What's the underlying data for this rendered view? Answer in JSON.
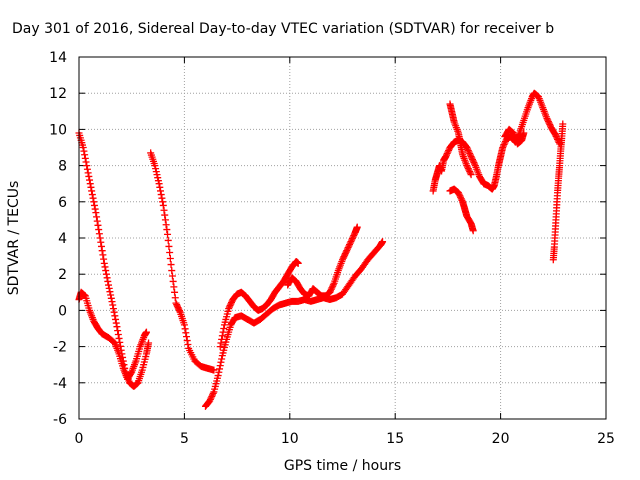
{
  "chart_data": {
    "type": "scatter",
    "title": "Day 301 of 2016, Sidereal Day-to-day VTEC variation (SDTVAR) for receiver b",
    "xlabel": "GPS time / hours",
    "ylabel": "SDTVAR / TECUs",
    "xlim": [
      0,
      25
    ],
    "ylim": [
      -6,
      14
    ],
    "xticks": [
      0,
      5,
      10,
      15,
      20,
      25
    ],
    "yticks": [
      -6,
      -4,
      -2,
      0,
      2,
      4,
      6,
      8,
      10,
      12,
      14
    ],
    "grid": true,
    "marker": "plus",
    "color": "#ff0000",
    "series": [
      {
        "points": [
          [
            0.0,
            9.8
          ],
          [
            0.2,
            9.0
          ],
          [
            0.4,
            7.8
          ],
          [
            0.6,
            6.6
          ],
          [
            0.8,
            5.4
          ],
          [
            1.0,
            4.0
          ],
          [
            1.2,
            2.6
          ],
          [
            1.4,
            1.4
          ],
          [
            1.6,
            0.3
          ],
          [
            1.8,
            -0.9
          ],
          [
            2.0,
            -2.2
          ],
          [
            2.2,
            -3.4
          ],
          [
            2.4,
            -4.0
          ],
          [
            2.6,
            -4.2
          ],
          [
            2.8,
            -4.0
          ],
          [
            3.0,
            -3.3
          ],
          [
            3.2,
            -2.4
          ],
          [
            3.3,
            -1.8
          ]
        ]
      },
      {
        "points": [
          [
            0.0,
            0.6
          ],
          [
            0.1,
            1.0
          ],
          [
            0.3,
            0.8
          ],
          [
            0.5,
            0.0
          ],
          [
            0.7,
            -0.6
          ],
          [
            0.9,
            -1.0
          ],
          [
            1.1,
            -1.3
          ],
          [
            1.4,
            -1.5
          ],
          [
            1.7,
            -1.8
          ],
          [
            1.9,
            -2.4
          ],
          [
            2.1,
            -3.2
          ],
          [
            2.3,
            -3.8
          ],
          [
            2.5,
            -3.4
          ],
          [
            2.7,
            -2.8
          ],
          [
            2.9,
            -2.0
          ],
          [
            3.1,
            -1.4
          ],
          [
            3.2,
            -1.2
          ]
        ]
      },
      {
        "points": [
          [
            3.4,
            8.7
          ],
          [
            3.6,
            8.0
          ],
          [
            3.8,
            7.0
          ],
          [
            4.0,
            5.8
          ],
          [
            4.2,
            4.2
          ],
          [
            4.4,
            2.2
          ],
          [
            4.6,
            0.4
          ],
          [
            4.8,
            -0.1
          ],
          [
            5.0,
            -0.8
          ],
          [
            5.2,
            -2.1
          ],
          [
            5.5,
            -2.8
          ],
          [
            5.8,
            -3.1
          ],
          [
            6.1,
            -3.2
          ],
          [
            6.4,
            -3.3
          ]
        ]
      },
      {
        "points": [
          [
            6.0,
            -5.3
          ],
          [
            6.2,
            -5.0
          ],
          [
            6.4,
            -4.5
          ],
          [
            6.6,
            -3.6
          ],
          [
            6.8,
            -2.5
          ],
          [
            7.0,
            -1.6
          ],
          [
            7.2,
            -0.8
          ],
          [
            7.4,
            -0.4
          ],
          [
            7.7,
            -0.3
          ],
          [
            8.0,
            -0.5
          ],
          [
            8.3,
            -0.7
          ],
          [
            8.6,
            -0.5
          ],
          [
            8.9,
            -0.2
          ],
          [
            9.2,
            0.1
          ],
          [
            9.5,
            0.3
          ],
          [
            9.8,
            0.4
          ],
          [
            10.1,
            0.5
          ],
          [
            10.4,
            0.5
          ],
          [
            10.7,
            0.6
          ],
          [
            11.0,
            0.5
          ],
          [
            11.3,
            0.6
          ],
          [
            11.6,
            0.7
          ],
          [
            11.9,
            0.6
          ],
          [
            12.2,
            0.7
          ],
          [
            12.5,
            0.9
          ],
          [
            12.8,
            1.4
          ],
          [
            13.1,
            1.9
          ],
          [
            13.4,
            2.3
          ],
          [
            13.7,
            2.8
          ],
          [
            14.0,
            3.2
          ],
          [
            14.3,
            3.6
          ],
          [
            14.4,
            3.8
          ]
        ]
      },
      {
        "points": [
          [
            6.7,
            -2.0
          ],
          [
            6.9,
            -0.8
          ],
          [
            7.1,
            0.1
          ],
          [
            7.3,
            0.6
          ],
          [
            7.5,
            0.9
          ],
          [
            7.7,
            1.0
          ],
          [
            7.9,
            0.8
          ],
          [
            8.1,
            0.5
          ],
          [
            8.3,
            0.2
          ],
          [
            8.5,
            0.0
          ],
          [
            8.7,
            0.1
          ],
          [
            8.9,
            0.3
          ],
          [
            9.1,
            0.6
          ],
          [
            9.3,
            1.0
          ],
          [
            9.5,
            1.3
          ],
          [
            9.7,
            1.6
          ],
          [
            9.9,
            2.0
          ],
          [
            10.1,
            2.4
          ],
          [
            10.3,
            2.7
          ],
          [
            10.4,
            2.6
          ]
        ]
      },
      {
        "points": [
          [
            9.9,
            1.4
          ],
          [
            10.1,
            1.8
          ],
          [
            10.3,
            1.6
          ],
          [
            10.5,
            1.2
          ],
          [
            10.7,
            0.9
          ],
          [
            10.9,
            0.8
          ],
          [
            11.1,
            1.2
          ],
          [
            11.3,
            1.0
          ],
          [
            11.5,
            0.8
          ],
          [
            11.7,
            0.8
          ],
          [
            11.9,
            1.0
          ],
          [
            12.1,
            1.5
          ],
          [
            12.3,
            2.2
          ],
          [
            12.5,
            2.8
          ],
          [
            12.7,
            3.3
          ],
          [
            12.9,
            3.8
          ],
          [
            13.1,
            4.3
          ],
          [
            13.2,
            4.6
          ]
        ]
      },
      {
        "points": [
          [
            16.8,
            6.6
          ],
          [
            16.9,
            7.2
          ],
          [
            17.0,
            7.6
          ],
          [
            17.1,
            8.0
          ],
          [
            17.2,
            7.7
          ],
          [
            17.3,
            8.3
          ],
          [
            17.4,
            8.5
          ],
          [
            17.6,
            9.0
          ],
          [
            17.8,
            9.3
          ],
          [
            18.0,
            9.4
          ],
          [
            18.2,
            9.3
          ],
          [
            18.4,
            9.0
          ],
          [
            18.6,
            8.5
          ],
          [
            18.8,
            8.0
          ],
          [
            19.0,
            7.4
          ],
          [
            19.2,
            7.0
          ],
          [
            19.4,
            6.9
          ],
          [
            19.6,
            6.7
          ],
          [
            19.7,
            6.9
          ],
          [
            19.8,
            7.4
          ],
          [
            19.9,
            8.0
          ],
          [
            20.0,
            8.5
          ],
          [
            20.1,
            9.0
          ],
          [
            20.3,
            9.5
          ],
          [
            20.5,
            9.6
          ],
          [
            20.7,
            9.3
          ],
          [
            20.9,
            9.8
          ],
          [
            21.1,
            10.5
          ],
          [
            21.3,
            11.2
          ],
          [
            21.5,
            11.8
          ],
          [
            21.6,
            12.0
          ],
          [
            21.8,
            11.8
          ],
          [
            22.0,
            11.2
          ],
          [
            22.2,
            10.6
          ],
          [
            22.4,
            10.1
          ],
          [
            22.6,
            9.7
          ],
          [
            22.8,
            9.2
          ]
        ]
      },
      {
        "points": [
          [
            17.6,
            11.4
          ],
          [
            17.7,
            10.9
          ],
          [
            17.8,
            10.4
          ],
          [
            18.0,
            9.8
          ],
          [
            18.1,
            9.2
          ],
          [
            18.2,
            8.6
          ],
          [
            18.4,
            8.0
          ],
          [
            18.6,
            7.5
          ]
        ]
      },
      {
        "points": [
          [
            20.2,
            9.6
          ],
          [
            20.4,
            10.0
          ],
          [
            20.6,
            9.8
          ],
          [
            20.8,
            9.2
          ],
          [
            21.0,
            9.4
          ],
          [
            21.1,
            9.8
          ]
        ]
      },
      {
        "points": [
          [
            17.6,
            6.6
          ],
          [
            17.8,
            6.7
          ],
          [
            18.0,
            6.5
          ],
          [
            18.2,
            6.0
          ],
          [
            18.3,
            5.6
          ],
          [
            18.4,
            5.2
          ],
          [
            18.6,
            4.8
          ],
          [
            18.7,
            4.4
          ]
        ]
      },
      {
        "points": [
          [
            22.5,
            2.8
          ],
          [
            22.55,
            3.5
          ],
          [
            22.6,
            4.5
          ],
          [
            22.65,
            5.5
          ],
          [
            22.7,
            6.5
          ],
          [
            22.75,
            7.3
          ],
          [
            22.8,
            8.0
          ],
          [
            22.85,
            8.8
          ],
          [
            22.9,
            9.5
          ],
          [
            22.95,
            10.3
          ]
        ]
      }
    ]
  }
}
